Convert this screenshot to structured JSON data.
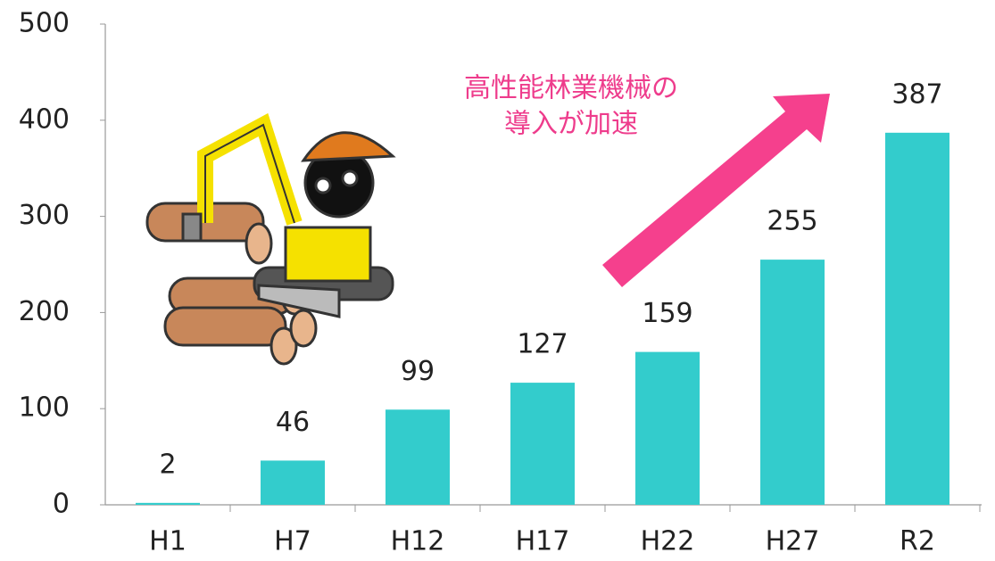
{
  "chart_data": {
    "type": "bar",
    "categories": [
      "H1",
      "H7",
      "H12",
      "H17",
      "H22",
      "H27",
      "R2"
    ],
    "values": [
      2,
      46,
      99,
      127,
      159,
      255,
      387
    ],
    "color": "#33cccc",
    "ylim": [
      0,
      500
    ],
    "yticks": [
      0,
      100,
      200,
      300,
      400,
      500
    ],
    "annotation": [
      "高性能林業機械の",
      "導入が加速"
    ],
    "annotation_color": "#ee3c8c"
  }
}
